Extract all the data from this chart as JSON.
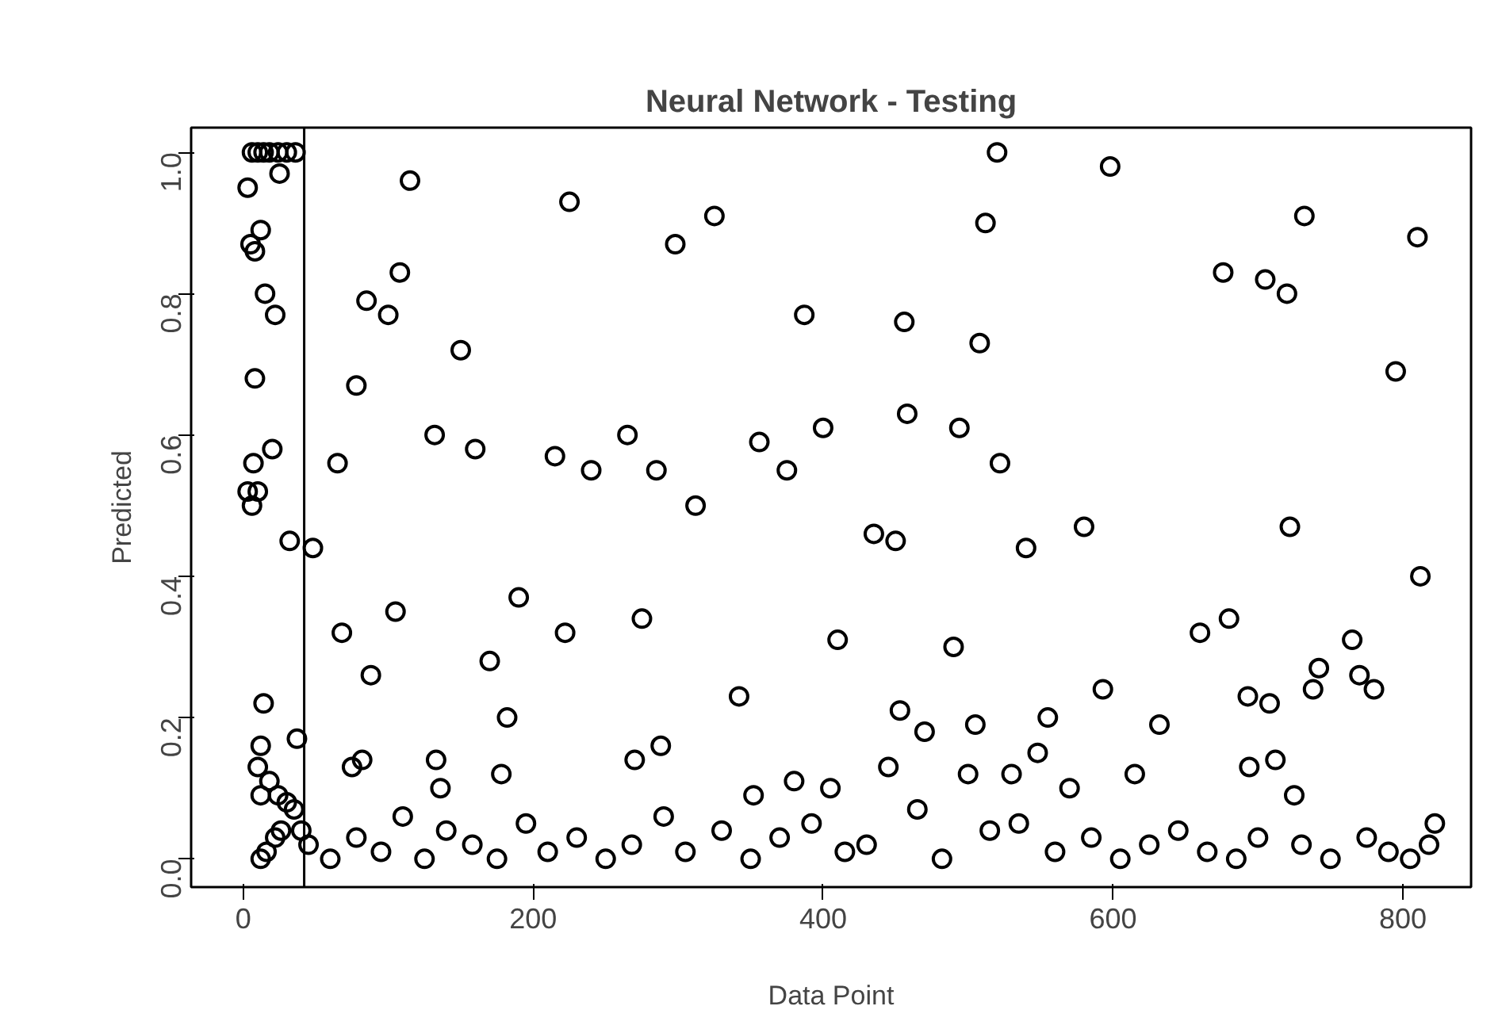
{
  "chart_data": {
    "type": "scatter",
    "title": "Neural Network - Testing",
    "xlabel": "Data Point",
    "ylabel": "Predicted",
    "xlim": [
      -36,
      847
    ],
    "ylim": [
      -0.04,
      1.035
    ],
    "xticks": [
      0,
      200,
      400,
      600,
      800
    ],
    "yticks": [
      {
        "value": 0,
        "label": "0.0"
      },
      {
        "value": 0.2,
        "label": "0.2"
      },
      {
        "value": 0.4,
        "label": "0.4"
      },
      {
        "value": 0.6,
        "label": "0.6"
      },
      {
        "value": 0.8,
        "label": "0.8"
      },
      {
        "value": 1,
        "label": "1.0"
      }
    ],
    "grid": false,
    "marker": "circle",
    "ref_lines": [
      {
        "axis": "x",
        "value": 42,
        "color": "#000000"
      }
    ],
    "series": [
      {
        "color": "#000000",
        "x": [
          3,
          6,
          10,
          14,
          18,
          24,
          30,
          36,
          25,
          5,
          8,
          12,
          15,
          22,
          8,
          3,
          6,
          10,
          7,
          20,
          32,
          37,
          14,
          12,
          10,
          12,
          18,
          24,
          30,
          35,
          12,
          16,
          22,
          26,
          40,
          48,
          65,
          68,
          75,
          78,
          82,
          85,
          88,
          100,
          105,
          108,
          115,
          132,
          133,
          136,
          150,
          160,
          170,
          178,
          182,
          190,
          215,
          222,
          225,
          240,
          265,
          270,
          275,
          285,
          288,
          298,
          312,
          325,
          342,
          352,
          356,
          375,
          380,
          387,
          400,
          405,
          410,
          435,
          445,
          450,
          453,
          456,
          458,
          470,
          490,
          494,
          500,
          505,
          508,
          512,
          520,
          522,
          530,
          540,
          548,
          555,
          570,
          580,
          593,
          598,
          615,
          632,
          660,
          676,
          680,
          693,
          694,
          705,
          708,
          712,
          720,
          722,
          725,
          732,
          738,
          742,
          765,
          770,
          780,
          795,
          810,
          812,
          822,
          45,
          60,
          78,
          95,
          110,
          125,
          140,
          158,
          175,
          195,
          210,
          230,
          250,
          268,
          290,
          305,
          330,
          350,
          370,
          392,
          415,
          430,
          465,
          482,
          515,
          535,
          560,
          585,
          605,
          625,
          645,
          665,
          685,
          700,
          730,
          750,
          775,
          790,
          805,
          818
        ],
        "values": [
          0.95,
          1.0,
          1.0,
          1.0,
          1.0,
          1.0,
          1.0,
          1.0,
          0.97,
          0.87,
          0.86,
          0.89,
          0.8,
          0.77,
          0.68,
          0.52,
          0.5,
          0.52,
          0.56,
          0.58,
          0.45,
          0.17,
          0.22,
          0.16,
          0.13,
          0.09,
          0.11,
          0.09,
          0.08,
          0.07,
          0.0,
          0.01,
          0.03,
          0.04,
          0.04,
          0.44,
          0.56,
          0.32,
          0.13,
          0.67,
          0.14,
          0.79,
          0.26,
          0.77,
          0.35,
          0.83,
          0.96,
          0.6,
          0.14,
          0.1,
          0.72,
          0.58,
          0.28,
          0.12,
          0.2,
          0.37,
          0.57,
          0.32,
          0.93,
          0.55,
          0.6,
          0.14,
          0.34,
          0.55,
          0.16,
          0.87,
          0.5,
          0.91,
          0.23,
          0.09,
          0.59,
          0.55,
          0.11,
          0.77,
          0.61,
          0.1,
          0.31,
          0.46,
          0.13,
          0.45,
          0.21,
          0.76,
          0.63,
          0.18,
          0.3,
          0.61,
          0.12,
          0.19,
          0.73,
          0.9,
          1.0,
          0.56,
          0.12,
          0.44,
          0.15,
          0.2,
          0.1,
          0.47,
          0.24,
          0.98,
          0.12,
          0.19,
          0.32,
          0.83,
          0.34,
          0.23,
          0.13,
          0.82,
          0.22,
          0.14,
          0.8,
          0.47,
          0.09,
          0.91,
          0.24,
          0.27,
          0.31,
          0.26,
          0.24,
          0.69,
          0.88,
          0.4,
          0.05,
          0.02,
          0.0,
          0.03,
          0.01,
          0.06,
          0.0,
          0.04,
          0.02,
          0.0,
          0.05,
          0.01,
          0.03,
          0.0,
          0.02,
          0.06,
          0.01,
          0.04,
          0.0,
          0.03,
          0.05,
          0.01,
          0.02,
          0.07,
          0.0,
          0.04,
          0.05,
          0.01,
          0.03,
          0.0,
          0.02,
          0.04,
          0.01,
          0.0,
          0.03,
          0.02,
          0.0,
          0.03,
          0.01,
          0.0,
          0.02
        ]
      }
    ]
  }
}
